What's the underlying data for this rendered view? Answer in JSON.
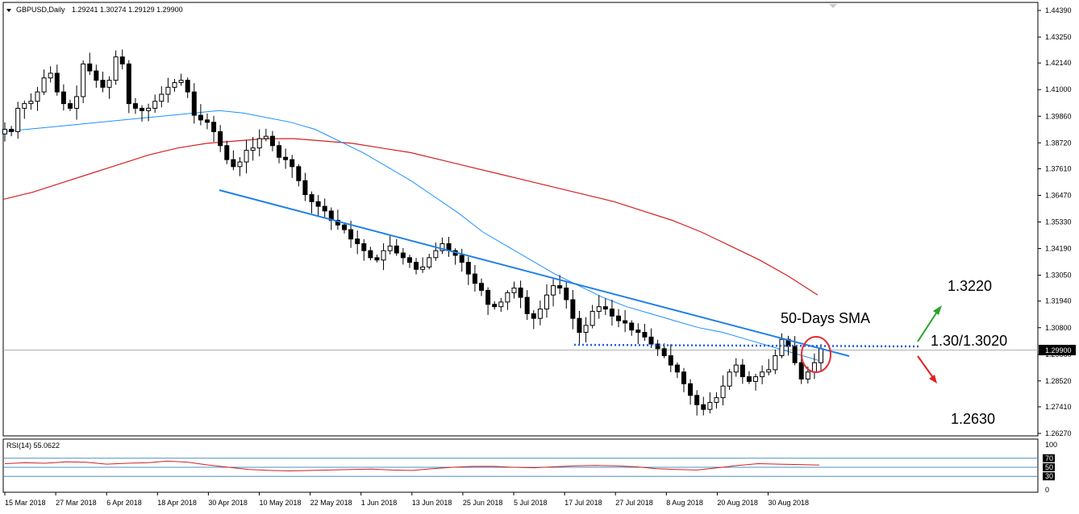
{
  "header": {
    "symbol": "GBPUSD,Daily",
    "ohlc": "1.29241 1.30274 1.29129 1.29900"
  },
  "rsi_header": {
    "label": "RSI(14) 55.0622"
  },
  "annotations": {
    "sma_label": "50-Days SMA",
    "resistance": "1.3220",
    "pivot": "1.30/1.3020",
    "support": "1.2630"
  },
  "price_badge": "1.29900",
  "colors": {
    "sma50": "#1e90ff",
    "sma200": "#d42020",
    "trendline": "#1e7fe8",
    "pivot_line": "#2060e0",
    "up_arrow": "#2aa32a",
    "down_arrow": "#e02020",
    "highlight_circle": "#e03030"
  },
  "chart_data": [
    {
      "type": "candlestick",
      "title": "GBPUSD,Daily",
      "ylim": [
        1.2627,
        1.4439
      ],
      "y_ticks": [
        "1.44390",
        "1.43250",
        "1.42140",
        "1.41000",
        "1.39860",
        "1.38720",
        "1.37610",
        "1.36470",
        "1.35330",
        "1.34190",
        "1.33050",
        "1.31940",
        "1.30800",
        "1.29660",
        "1.28520",
        "1.27410",
        "1.26270"
      ],
      "x_ticks": [
        "15 Mar 2018",
        "27 Mar 2018",
        "6 Apr 2018",
        "18 Apr 2018",
        "30 Apr 2018",
        "10 May 2018",
        "22 May 2018",
        "1 Jun 2018",
        "13 Jun 2018",
        "25 Jun 2018",
        "5 Jul 2018",
        "17 Jul 2018",
        "27 Jul 2018",
        "8 Aug 2018",
        "20 Aug 2018",
        "30 Aug 2018"
      ],
      "series": [
        {
          "name": "close",
          "values": [
            1.393,
            1.392,
            1.402,
            1.404,
            1.405,
            1.409,
            1.415,
            1.417,
            1.409,
            1.404,
            1.402,
            1.407,
            1.421,
            1.418,
            1.414,
            1.411,
            1.414,
            1.424,
            1.421,
            1.404,
            1.402,
            1.401,
            1.402,
            1.405,
            1.408,
            1.411,
            1.413,
            1.414,
            1.409,
            1.399,
            1.397,
            1.396,
            1.392,
            1.386,
            1.38,
            1.377,
            1.379,
            1.384,
            1.385,
            1.389,
            1.39,
            1.386,
            1.381,
            1.38,
            1.377,
            1.371,
            1.365,
            1.362,
            1.36,
            1.358,
            1.354,
            1.352,
            1.35,
            1.346,
            1.344,
            1.341,
            1.338,
            1.337,
            1.341,
            1.343,
            1.34,
            1.338,
            1.336,
            1.333,
            1.334,
            1.338,
            1.341,
            1.344,
            1.341,
            1.339,
            1.336,
            1.331,
            1.327,
            1.324,
            1.318,
            1.317,
            1.319,
            1.323,
            1.325,
            1.321,
            1.314,
            1.312,
            1.316,
            1.322,
            1.326,
            1.325,
            1.32,
            1.312,
            1.306,
            1.309,
            1.315,
            1.317,
            1.316,
            1.313,
            1.311,
            1.31,
            1.307,
            1.306,
            1.304,
            1.301,
            1.299,
            1.296,
            1.292,
            1.289,
            1.284,
            1.279,
            1.275,
            1.273,
            1.276,
            1.278,
            1.283,
            1.289,
            1.292,
            1.287,
            1.285,
            1.287,
            1.289,
            1.29,
            1.296,
            1.303,
            1.3,
            1.293,
            1.286,
            1.289,
            1.293,
            1.299
          ]
        },
        {
          "name": "SMA50",
          "values": [
            1.392,
            1.393,
            1.394,
            1.395,
            1.396,
            1.397,
            1.398,
            1.399,
            1.4,
            1.401,
            1.4,
            1.398,
            1.396,
            1.393,
            1.388,
            1.383,
            1.377,
            1.371,
            1.364,
            1.357,
            1.349,
            1.343,
            1.337,
            1.331,
            1.326,
            1.321,
            1.317,
            1.314,
            1.311,
            1.308,
            1.306,
            1.303,
            1.3,
            1.297,
            1.294
          ]
        },
        {
          "name": "SMA200",
          "values": [
            1.363,
            1.366,
            1.37,
            1.374,
            1.378,
            1.382,
            1.385,
            1.387,
            1.388,
            1.389,
            1.389,
            1.388,
            1.387,
            1.385,
            1.383,
            1.38,
            1.377,
            1.374,
            1.371,
            1.368,
            1.365,
            1.362,
            1.358,
            1.354,
            1.349,
            1.343,
            1.337,
            1.33,
            1.322
          ]
        },
        {
          "name": "RSI(14)",
          "values": [
            58,
            60,
            59,
            62,
            61,
            57,
            59,
            60,
            64,
            61,
            55,
            50,
            45,
            43,
            42,
            43,
            44,
            45,
            46,
            44,
            43,
            47,
            50,
            52,
            52,
            50,
            49,
            51,
            53,
            54,
            53,
            51,
            47,
            45,
            44,
            49,
            54,
            58,
            57,
            56,
            55
          ]
        }
      ],
      "rsi_levels": [
        70,
        50,
        30
      ],
      "rsi_ylim": [
        0,
        100
      ],
      "rsi_ticks": [
        "100",
        "70",
        "50",
        "30",
        "0"
      ],
      "legend": "none",
      "grid": false
    }
  ]
}
